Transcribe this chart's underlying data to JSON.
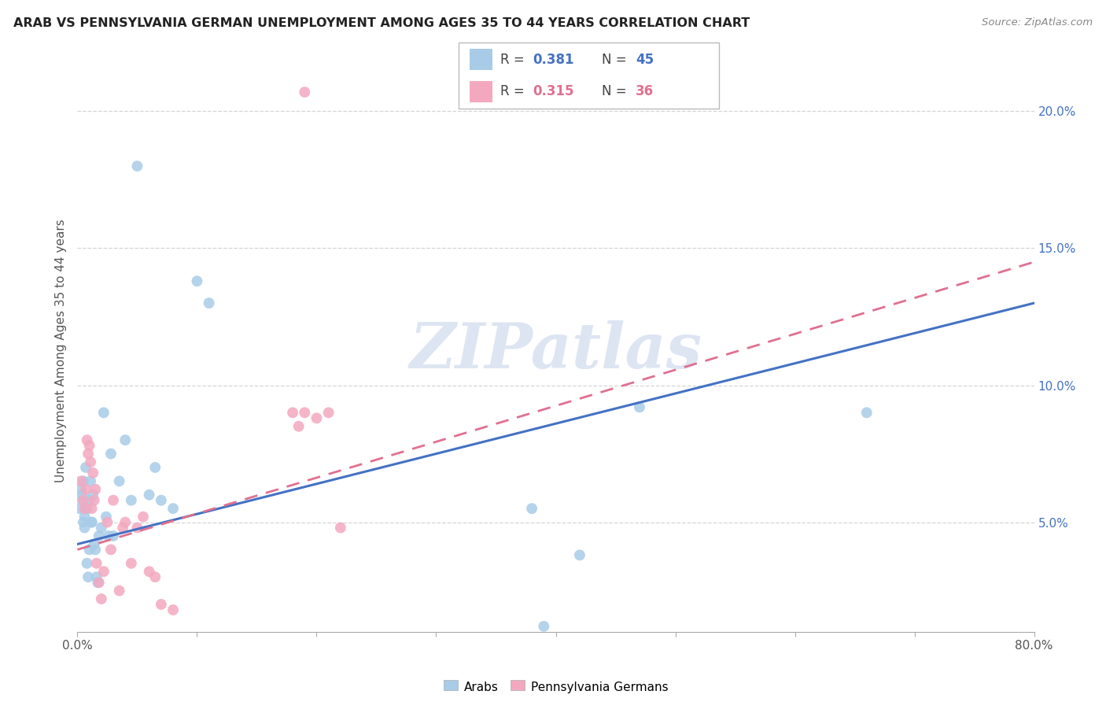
{
  "title": "ARAB VS PENNSYLVANIA GERMAN UNEMPLOYMENT AMONG AGES 35 TO 44 YEARS CORRELATION CHART",
  "source": "Source: ZipAtlas.com",
  "ylabel": "Unemployment Among Ages 35 to 44 years",
  "xlim": [
    0.0,
    0.8
  ],
  "ylim": [
    0.01,
    0.215
  ],
  "arab_color": "#a8cce8",
  "pg_color": "#f4a8c0",
  "arab_line_color": "#4472c4",
  "pg_line_color": "#e07090",
  "watermark": "ZIPatlas",
  "watermark_color": "#dde5f2",
  "arab_R": "0.381",
  "arab_N": "45",
  "pg_R": "0.315",
  "pg_N": "36",
  "arab_label": "Arabs",
  "pg_label": "Pennsylvania Germans",
  "arab_x": [
    0.002,
    0.003,
    0.004,
    0.004,
    0.005,
    0.005,
    0.006,
    0.006,
    0.007,
    0.007,
    0.008,
    0.008,
    0.009,
    0.01,
    0.01,
    0.011,
    0.012,
    0.012,
    0.013,
    0.014,
    0.015,
    0.016,
    0.017,
    0.018,
    0.02,
    0.022,
    0.024,
    0.026,
    0.028,
    0.03,
    0.035,
    0.04,
    0.045,
    0.05,
    0.06,
    0.065,
    0.07,
    0.08,
    0.1,
    0.11,
    0.38,
    0.42,
    0.47,
    0.66,
    0.39
  ],
  "arab_y": [
    0.055,
    0.062,
    0.058,
    0.06,
    0.065,
    0.05,
    0.048,
    0.052,
    0.07,
    0.055,
    0.055,
    0.035,
    0.03,
    0.058,
    0.04,
    0.065,
    0.05,
    0.05,
    0.06,
    0.042,
    0.04,
    0.03,
    0.028,
    0.045,
    0.048,
    0.09,
    0.052,
    0.045,
    0.075,
    0.045,
    0.065,
    0.08,
    0.058,
    0.18,
    0.06,
    0.07,
    0.058,
    0.055,
    0.138,
    0.13,
    0.055,
    0.038,
    0.092,
    0.09,
    0.012
  ],
  "pg_x": [
    0.003,
    0.005,
    0.006,
    0.007,
    0.008,
    0.009,
    0.01,
    0.011,
    0.012,
    0.013,
    0.014,
    0.015,
    0.016,
    0.018,
    0.02,
    0.022,
    0.025,
    0.028,
    0.03,
    0.035,
    0.038,
    0.04,
    0.045,
    0.05,
    0.055,
    0.06,
    0.065,
    0.07,
    0.08,
    0.18,
    0.185,
    0.19,
    0.2,
    0.21,
    0.22,
    0.19
  ],
  "pg_y": [
    0.065,
    0.058,
    0.055,
    0.062,
    0.08,
    0.075,
    0.078,
    0.072,
    0.055,
    0.068,
    0.058,
    0.062,
    0.035,
    0.028,
    0.022,
    0.032,
    0.05,
    0.04,
    0.058,
    0.025,
    0.048,
    0.05,
    0.035,
    0.048,
    0.052,
    0.032,
    0.03,
    0.02,
    0.018,
    0.09,
    0.085,
    0.09,
    0.088,
    0.09,
    0.048,
    0.207
  ],
  "arab_line_x0": 0.0,
  "arab_line_y0": 0.042,
  "arab_line_x1": 0.8,
  "arab_line_y1": 0.13,
  "pg_line_x0": 0.0,
  "pg_line_y0": 0.04,
  "pg_line_x1": 0.8,
  "pg_line_y1": 0.145
}
